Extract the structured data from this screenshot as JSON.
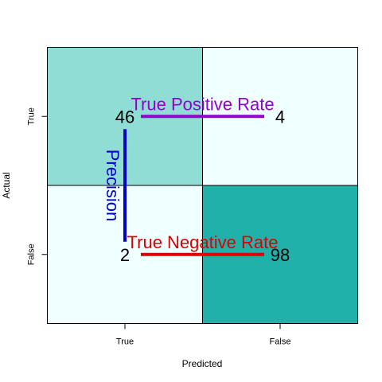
{
  "chart_data": {
    "type": "heatmap",
    "title": "",
    "xlabel": "Predicted",
    "ylabel": "Actual",
    "x_categories": [
      "True",
      "False"
    ],
    "y_categories": [
      "True",
      "False"
    ],
    "cells": [
      {
        "actual": "True",
        "predicted": "True",
        "value": 46,
        "color": "#90DDD6"
      },
      {
        "actual": "True",
        "predicted": "False",
        "value": 4,
        "color": "#F0FFFF"
      },
      {
        "actual": "False",
        "predicted": "True",
        "value": 2,
        "color": "#F0FFFF"
      },
      {
        "actual": "False",
        "predicted": "False",
        "value": 98,
        "color": "#20B2AA"
      }
    ],
    "annotations": [
      {
        "text": "True Positive Rate",
        "color": "#9400D3",
        "from_cell": "46",
        "to_cell": "4",
        "direction": "horizontal"
      },
      {
        "text": "Precision",
        "color": "#0000CD",
        "from_cell": "46",
        "to_cell": "2",
        "direction": "vertical"
      },
      {
        "text": "True Negative Rate",
        "color": "#DD0000",
        "from_cell": "2",
        "to_cell": "98",
        "direction": "horizontal"
      }
    ],
    "grid": false,
    "legend": "none"
  }
}
